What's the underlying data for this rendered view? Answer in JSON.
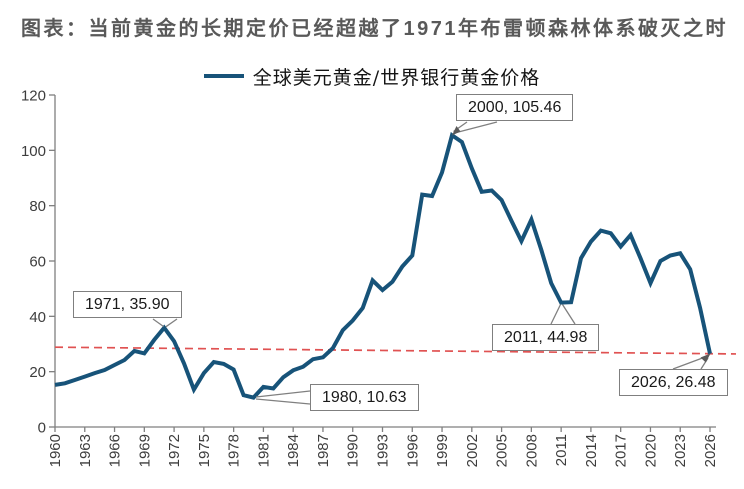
{
  "title": "图表：当前黄金的长期定价已经超越了1971年布雷顿森林体系破灭之时",
  "legend": {
    "label": "全球美元黄金/世界银行黄金价格"
  },
  "colors": {
    "line": "#175379",
    "trend_line": "#e05252",
    "title_text": "#595959",
    "axis": "#7f7f7f",
    "tick_label": "#3d3d3d",
    "callout_border": "#7f7f7f",
    "leader": "#808080"
  },
  "chart_data": {
    "type": "line",
    "title": "图表：当前黄金的长期定价已经超越了1971年布雷顿森林体系破灭之时",
    "legend_entries": [
      "全球美元黄金/世界银行黄金价格"
    ],
    "legend_position": "top-center",
    "grid": false,
    "ylim": [
      0,
      120
    ],
    "yticks": [
      0,
      20,
      40,
      60,
      80,
      100,
      120
    ],
    "xticks": [
      1960,
      1963,
      1966,
      1969,
      1972,
      1975,
      1978,
      1981,
      1984,
      1987,
      1990,
      1993,
      1996,
      1999,
      2002,
      2005,
      2008,
      2011,
      2014,
      2017,
      2020,
      2023,
      2026
    ],
    "x": [
      1960,
      1961,
      1962,
      1963,
      1964,
      1965,
      1966,
      1967,
      1968,
      1969,
      1970,
      1971,
      1972,
      1973,
      1974,
      1975,
      1976,
      1977,
      1978,
      1979,
      1980,
      1981,
      1982,
      1983,
      1984,
      1985,
      1986,
      1987,
      1988,
      1989,
      1990,
      1991,
      1992,
      1993,
      1994,
      1995,
      1996,
      1997,
      1998,
      1999,
      2000,
      2001,
      2002,
      2003,
      2004,
      2005,
      2006,
      2007,
      2008,
      2009,
      2010,
      2011,
      2012,
      2013,
      2014,
      2015,
      2016,
      2017,
      2018,
      2019,
      2020,
      2021,
      2022,
      2023,
      2024,
      2025,
      2026
    ],
    "series": [
      {
        "name": "全球美元黄金/世界银行黄金价格",
        "values": [
          15.2,
          15.8,
          17.0,
          18.2,
          19.5,
          20.6,
          22.4,
          24.2,
          27.5,
          26.6,
          31.5,
          35.9,
          31.0,
          23.0,
          13.5,
          19.5,
          23.5,
          22.8,
          20.8,
          11.5,
          10.63,
          14.5,
          13.9,
          18.0,
          20.5,
          21.8,
          24.5,
          25.2,
          28.5,
          35.0,
          38.5,
          43.0,
          53.0,
          49.5,
          52.5,
          58.0,
          62.0,
          84.0,
          83.5,
          92.0,
          105.46,
          103.0,
          93.5,
          85.0,
          85.5,
          82.0,
          74.5,
          67.2,
          75.0,
          64.0,
          52.0,
          44.98,
          45.1,
          61.0,
          67.0,
          71.0,
          70.0,
          65.2,
          69.4,
          61.0,
          52.0,
          60.0,
          62.0,
          62.8,
          57.0,
          43.0,
          26.48
        ]
      }
    ],
    "trend_line": {
      "style": "dashed",
      "x": [
        1960,
        2026
      ],
      "values": [
        28.85,
        26.5
      ]
    },
    "annotations": [
      {
        "label": "1971, 35.90",
        "year": 1971,
        "value": 35.9
      },
      {
        "label": "2000, 105.46",
        "year": 2000,
        "value": 105.46
      },
      {
        "label": "1980, 10.63",
        "year": 1980,
        "value": 10.63
      },
      {
        "label": "2011, 44.98",
        "year": 2011,
        "value": 44.98
      },
      {
        "label": "2026, 26.48",
        "year": 2026,
        "value": 26.48
      }
    ]
  }
}
